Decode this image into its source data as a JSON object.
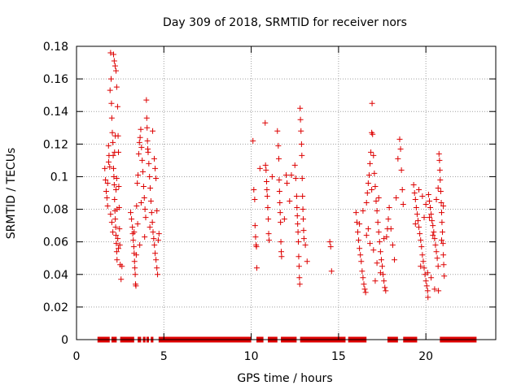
{
  "chart_data": {
    "type": "scatter",
    "title": "Day 309 of 2018, SRMTID for receiver nors",
    "xlabel": "GPS time / hours",
    "ylabel": "SRMTID / TECUs",
    "xlim": [
      0,
      24
    ],
    "ylim": [
      0,
      0.18
    ],
    "xticks": [
      0,
      5,
      10,
      15,
      20
    ],
    "yticks": [
      0,
      0.02,
      0.04,
      0.06,
      0.08,
      0.1,
      0.12,
      0.14,
      0.16,
      0.18
    ],
    "xtick_labels": [
      "0",
      "5",
      "10",
      "15",
      "20"
    ],
    "ytick_labels": [
      "0",
      "0.02",
      "0.04",
      "0.06",
      "0.08",
      "0.1",
      "0.12",
      "0.14",
      "0.16",
      "0.18"
    ],
    "grid": true,
    "marker": "+",
    "color": "#dd0000",
    "series": [
      {
        "name": "SRMTID",
        "points": [
          [
            1.62,
            0.105
          ],
          [
            1.66,
            0.098
          ],
          [
            1.7,
            0.091
          ],
          [
            1.74,
            0.087
          ],
          [
            1.78,
            0.082
          ],
          [
            1.83,
            0.119
          ],
          [
            1.86,
            0.113
          ],
          [
            1.9,
            0.106
          ],
          [
            1.92,
            0.153
          ],
          [
            1.95,
            0.176
          ],
          [
            1.98,
            0.16
          ],
          [
            2.0,
            0.145
          ],
          [
            2.02,
            0.136
          ],
          [
            2.05,
            0.127
          ],
          [
            2.08,
            0.121
          ],
          [
            2.1,
            0.113
          ],
          [
            2.12,
            0.105
          ],
          [
            2.14,
            0.1
          ],
          [
            2.16,
            0.095
          ],
          [
            2.18,
            0.086
          ],
          [
            2.2,
            0.079
          ],
          [
            2.22,
            0.074
          ],
          [
            2.24,
            0.069
          ],
          [
            2.26,
            0.064
          ],
          [
            2.28,
            0.059
          ],
          [
            2.3,
            0.054
          ],
          [
            2.32,
            0.049
          ],
          [
            2.12,
            0.175
          ],
          [
            2.16,
            0.171
          ],
          [
            2.21,
            0.168
          ],
          [
            2.26,
            0.165
          ],
          [
            2.3,
            0.155
          ],
          [
            2.35,
            0.143
          ],
          [
            2.38,
            0.125
          ],
          [
            2.4,
            0.115
          ],
          [
            2.42,
            0.094
          ],
          [
            2.44,
            0.081
          ],
          [
            2.46,
            0.068
          ],
          [
            2.48,
            0.058
          ],
          [
            2.5,
            0.046
          ],
          [
            1.95,
            0.077
          ],
          [
            2.02,
            0.072
          ],
          [
            2.08,
            0.066
          ],
          [
            2.32,
            0.08
          ],
          [
            2.36,
            0.062
          ],
          [
            2.4,
            0.056
          ],
          [
            2.55,
            0.037
          ],
          [
            2.6,
            0.045
          ],
          [
            1.78,
            0.096
          ],
          [
            1.84,
            0.109
          ],
          [
            2.18,
            0.115
          ],
          [
            2.22,
            0.125
          ],
          [
            2.26,
            0.092
          ],
          [
            2.3,
            0.099
          ],
          [
            3.1,
            0.078
          ],
          [
            3.15,
            0.074
          ],
          [
            3.2,
            0.069
          ],
          [
            3.22,
            0.065
          ],
          [
            3.25,
            0.061
          ],
          [
            3.28,
            0.057
          ],
          [
            3.3,
            0.053
          ],
          [
            3.32,
            0.048
          ],
          [
            3.34,
            0.044
          ],
          [
            3.36,
            0.04
          ],
          [
            3.38,
            0.034
          ],
          [
            3.4,
            0.033
          ],
          [
            3.44,
            0.082
          ],
          [
            3.48,
            0.096
          ],
          [
            3.52,
            0.101
          ],
          [
            3.56,
            0.114
          ],
          [
            3.6,
            0.121
          ],
          [
            3.64,
            0.124
          ],
          [
            3.68,
            0.129
          ],
          [
            3.72,
            0.118
          ],
          [
            3.76,
            0.11
          ],
          [
            3.8,
            0.103
          ],
          [
            3.84,
            0.094
          ],
          [
            3.88,
            0.087
          ],
          [
            3.92,
            0.08
          ],
          [
            3.96,
            0.075
          ],
          [
            4.0,
            0.147
          ],
          [
            4.02,
            0.136
          ],
          [
            4.04,
            0.13
          ],
          [
            4.06,
            0.122
          ],
          [
            4.08,
            0.117
          ],
          [
            4.1,
            0.115
          ],
          [
            4.14,
            0.108
          ],
          [
            4.18,
            0.1
          ],
          [
            4.22,
            0.093
          ],
          [
            4.26,
            0.085
          ],
          [
            4.3,
            0.078
          ],
          [
            4.34,
            0.072
          ],
          [
            4.38,
            0.066
          ],
          [
            4.42,
            0.062
          ],
          [
            4.46,
            0.058
          ],
          [
            4.5,
            0.053
          ],
          [
            4.55,
            0.049
          ],
          [
            4.6,
            0.044
          ],
          [
            4.64,
            0.04
          ],
          [
            4.68,
            0.061
          ],
          [
            4.72,
            0.065
          ],
          [
            4.45,
            0.111
          ],
          [
            4.5,
            0.105
          ],
          [
            4.55,
            0.099
          ],
          [
            4.36,
            0.128
          ],
          [
            3.3,
            0.066
          ],
          [
            3.5,
            0.071
          ],
          [
            3.7,
            0.084
          ],
          [
            3.9,
            0.063
          ],
          [
            4.2,
            0.069
          ],
          [
            4.6,
            0.079
          ],
          [
            3.62,
            0.058
          ],
          [
            3.42,
            0.052
          ],
          [
            10.1,
            0.122
          ],
          [
            10.15,
            0.092
          ],
          [
            10.2,
            0.086
          ],
          [
            10.22,
            0.07
          ],
          [
            10.25,
            0.063
          ],
          [
            10.28,
            0.058
          ],
          [
            10.3,
            0.057
          ],
          [
            10.32,
            0.044
          ],
          [
            10.8,
            0.133
          ],
          [
            10.82,
            0.107
          ],
          [
            10.85,
            0.104
          ],
          [
            10.88,
            0.097
          ],
          [
            10.9,
            0.092
          ],
          [
            10.92,
            0.088
          ],
          [
            10.95,
            0.081
          ],
          [
            10.98,
            0.074
          ],
          [
            11.0,
            0.065
          ],
          [
            11.02,
            0.061
          ],
          [
            11.5,
            0.128
          ],
          [
            11.55,
            0.119
          ],
          [
            11.58,
            0.111
          ],
          [
            11.6,
            0.098
          ],
          [
            11.62,
            0.091
          ],
          [
            11.64,
            0.084
          ],
          [
            11.66,
            0.078
          ],
          [
            11.68,
            0.072
          ],
          [
            11.7,
            0.06
          ],
          [
            11.72,
            0.054
          ],
          [
            11.74,
            0.051
          ],
          [
            12.0,
            0.101
          ],
          [
            12.05,
            0.096
          ],
          [
            12.3,
            0.101
          ],
          [
            12.5,
            0.107
          ],
          [
            12.55,
            0.099
          ],
          [
            12.6,
            0.088
          ],
          [
            12.62,
            0.081
          ],
          [
            12.64,
            0.076
          ],
          [
            12.66,
            0.071
          ],
          [
            12.68,
            0.066
          ],
          [
            12.7,
            0.06
          ],
          [
            12.72,
            0.051
          ],
          [
            12.74,
            0.045
          ],
          [
            12.76,
            0.038
          ],
          [
            12.78,
            0.034
          ],
          [
            12.8,
            0.142
          ],
          [
            12.82,
            0.135
          ],
          [
            12.85,
            0.128
          ],
          [
            12.88,
            0.12
          ],
          [
            12.9,
            0.113
          ],
          [
            12.92,
            0.099
          ],
          [
            12.94,
            0.088
          ],
          [
            12.96,
            0.08
          ],
          [
            12.98,
            0.074
          ],
          [
            13.0,
            0.067
          ],
          [
            13.02,
            0.062
          ],
          [
            13.1,
            0.058
          ],
          [
            13.2,
            0.048
          ],
          [
            14.5,
            0.06
          ],
          [
            14.55,
            0.057
          ],
          [
            14.6,
            0.042
          ],
          [
            12.2,
            0.085
          ],
          [
            11.2,
            0.1
          ],
          [
            10.5,
            0.105
          ],
          [
            11.9,
            0.074
          ],
          [
            16.0,
            0.078
          ],
          [
            16.05,
            0.072
          ],
          [
            16.1,
            0.066
          ],
          [
            16.15,
            0.061
          ],
          [
            16.2,
            0.056
          ],
          [
            16.25,
            0.052
          ],
          [
            16.3,
            0.048
          ],
          [
            16.35,
            0.042
          ],
          [
            16.4,
            0.038
          ],
          [
            16.45,
            0.034
          ],
          [
            16.5,
            0.031
          ],
          [
            16.55,
            0.029
          ],
          [
            16.6,
            0.084
          ],
          [
            16.65,
            0.09
          ],
          [
            16.7,
            0.096
          ],
          [
            16.75,
            0.101
          ],
          [
            16.8,
            0.108
          ],
          [
            16.85,
            0.115
          ],
          [
            16.9,
            0.127
          ],
          [
            16.92,
            0.145
          ],
          [
            16.95,
            0.126
          ],
          [
            17.0,
            0.113
          ],
          [
            17.05,
            0.102
          ],
          [
            17.1,
            0.094
          ],
          [
            17.15,
            0.085
          ],
          [
            17.2,
            0.079
          ],
          [
            17.25,
            0.072
          ],
          [
            17.3,
            0.066
          ],
          [
            17.35,
            0.06
          ],
          [
            17.4,
            0.054
          ],
          [
            17.45,
            0.049
          ],
          [
            17.5,
            0.045
          ],
          [
            17.55,
            0.04
          ],
          [
            17.6,
            0.036
          ],
          [
            17.65,
            0.032
          ],
          [
            17.7,
            0.03
          ],
          [
            17.75,
            0.063
          ],
          [
            17.8,
            0.068
          ],
          [
            17.85,
            0.074
          ],
          [
            17.9,
            0.081
          ],
          [
            18.0,
            0.068
          ],
          [
            18.1,
            0.058
          ],
          [
            18.2,
            0.049
          ],
          [
            18.3,
            0.087
          ],
          [
            18.4,
            0.111
          ],
          [
            18.5,
            0.123
          ],
          [
            18.55,
            0.117
          ],
          [
            18.6,
            0.104
          ],
          [
            18.65,
            0.092
          ],
          [
            18.7,
            0.083
          ],
          [
            16.4,
            0.079
          ],
          [
            16.6,
            0.064
          ],
          [
            16.8,
            0.059
          ],
          [
            17.0,
            0.055
          ],
          [
            17.2,
            0.047
          ],
          [
            17.4,
            0.041
          ],
          [
            17.3,
            0.087
          ],
          [
            16.9,
            0.092
          ],
          [
            16.7,
            0.068
          ],
          [
            17.6,
            0.062
          ],
          [
            16.2,
            0.071
          ],
          [
            17.1,
            0.036
          ],
          [
            19.3,
            0.095
          ],
          [
            19.35,
            0.09
          ],
          [
            19.4,
            0.086
          ],
          [
            19.45,
            0.081
          ],
          [
            19.5,
            0.077
          ],
          [
            19.55,
            0.073
          ],
          [
            19.6,
            0.069
          ],
          [
            19.65,
            0.065
          ],
          [
            19.7,
            0.061
          ],
          [
            19.75,
            0.057
          ],
          [
            19.8,
            0.052
          ],
          [
            19.85,
            0.048
          ],
          [
            19.9,
            0.044
          ],
          [
            19.95,
            0.04
          ],
          [
            20.0,
            0.036
          ],
          [
            20.05,
            0.033
          ],
          [
            20.1,
            0.03
          ],
          [
            20.12,
            0.026
          ],
          [
            20.15,
            0.089
          ],
          [
            20.2,
            0.085
          ],
          [
            20.25,
            0.081
          ],
          [
            20.3,
            0.077
          ],
          [
            20.35,
            0.073
          ],
          [
            20.4,
            0.07
          ],
          [
            20.45,
            0.066
          ],
          [
            20.5,
            0.062
          ],
          [
            20.55,
            0.058
          ],
          [
            20.6,
            0.054
          ],
          [
            20.65,
            0.05
          ],
          [
            20.7,
            0.045
          ],
          [
            20.72,
            0.03
          ],
          [
            20.75,
            0.114
          ],
          [
            20.78,
            0.11
          ],
          [
            20.8,
            0.104
          ],
          [
            20.82,
            0.098
          ],
          [
            20.85,
            0.091
          ],
          [
            20.88,
            0.084
          ],
          [
            20.9,
            0.078
          ],
          [
            20.92,
            0.072
          ],
          [
            20.95,
            0.066
          ],
          [
            20.98,
            0.059
          ],
          [
            21.0,
            0.052
          ],
          [
            21.02,
            0.046
          ],
          [
            21.05,
            0.039
          ],
          [
            19.6,
            0.092
          ],
          [
            19.8,
            0.088
          ],
          [
            20.0,
            0.083
          ],
          [
            20.2,
            0.075
          ],
          [
            20.4,
            0.064
          ],
          [
            20.6,
            0.086
          ],
          [
            19.4,
            0.071
          ],
          [
            19.7,
            0.045
          ],
          [
            20.1,
            0.041
          ],
          [
            20.3,
            0.038
          ],
          [
            20.5,
            0.031
          ],
          [
            20.9,
            0.061
          ],
          [
            21.0,
            0.082
          ],
          [
            19.9,
            0.075
          ],
          [
            20.7,
            0.093
          ]
        ]
      }
    ],
    "zero_segments": [
      [
        1.2,
        1.9
      ],
      [
        2.0,
        2.3
      ],
      [
        2.5,
        3.3
      ],
      [
        3.5,
        3.7
      ],
      [
        3.8,
        3.95
      ],
      [
        4.0,
        4.15
      ],
      [
        4.25,
        4.4
      ],
      [
        4.7,
        10.0
      ],
      [
        10.3,
        10.7
      ],
      [
        10.95,
        11.5
      ],
      [
        11.7,
        12.6
      ],
      [
        12.8,
        15.4
      ],
      [
        15.55,
        16.6
      ],
      [
        17.8,
        18.4
      ],
      [
        18.7,
        19.5
      ],
      [
        20.8,
        22.9
      ]
    ]
  }
}
